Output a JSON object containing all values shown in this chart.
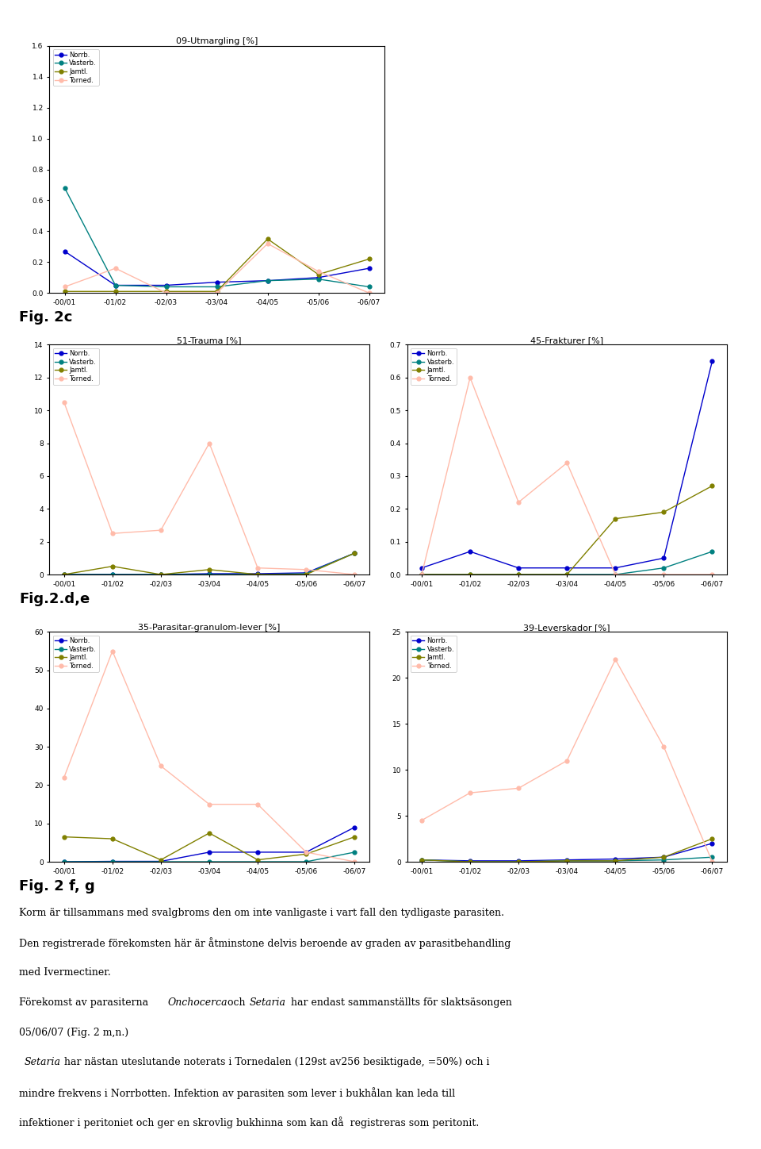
{
  "x_labels": [
    "-00/01",
    "-01/02",
    "-02/03",
    "-03/04",
    "-04/05",
    "-05/06",
    "-06/07"
  ],
  "x_vals": [
    0,
    1,
    2,
    3,
    4,
    5,
    6
  ],
  "colors": {
    "Norrb.": "#0000cc",
    "Vasterb.": "#008080",
    "Jamtl.": "#808000",
    "Torned.": "#ffbbaa"
  },
  "legend_labels": [
    "Norrb.",
    "Vasterb.",
    "Jamtl.",
    "Torned."
  ],
  "chart1": {
    "title": "09-Utmargling [%]",
    "ylim": [
      0,
      1.6
    ],
    "yticks": [
      0,
      0.2,
      0.4,
      0.6,
      0.8,
      1.0,
      1.2,
      1.4,
      1.6
    ],
    "Norrb.": [
      0.27,
      0.05,
      0.05,
      0.07,
      0.08,
      0.1,
      0.16
    ],
    "Vasterb.": [
      0.68,
      0.05,
      0.04,
      0.04,
      0.08,
      0.09,
      0.04
    ],
    "Jamtl.": [
      0.01,
      0.01,
      0.01,
      0.01,
      0.35,
      0.12,
      0.22
    ],
    "Torned.": [
      0.04,
      0.16,
      0.0,
      0.0,
      0.32,
      0.14,
      0.0
    ]
  },
  "chart2": {
    "title": "51-Trauma [%]",
    "ylim": [
      0,
      14
    ],
    "yticks": [
      0,
      2,
      4,
      6,
      8,
      10,
      12,
      14
    ],
    "Norrb.": [
      0.0,
      0.0,
      0.0,
      0.05,
      0.05,
      0.1,
      1.3
    ],
    "Vasterb.": [
      0.0,
      0.0,
      0.0,
      0.0,
      0.0,
      0.05,
      1.3
    ],
    "Jamtl.": [
      0.0,
      0.5,
      0.0,
      0.3,
      0.0,
      0.0,
      1.3
    ],
    "Torned.": [
      10.5,
      2.5,
      2.7,
      8.0,
      0.4,
      0.3,
      0.0
    ]
  },
  "chart3": {
    "title": "45-Frakturer [%]",
    "ylim": [
      0,
      0.7
    ],
    "yticks": [
      0,
      0.1,
      0.2,
      0.3,
      0.4,
      0.5,
      0.6,
      0.7
    ],
    "Norrb.": [
      0.02,
      0.07,
      0.02,
      0.02,
      0.02,
      0.05,
      0.65
    ],
    "Vasterb.": [
      0.0,
      0.0,
      0.0,
      0.0,
      0.0,
      0.02,
      0.07
    ],
    "Jamtl.": [
      0.0,
      0.0,
      0.0,
      0.0,
      0.17,
      0.19,
      0.27
    ],
    "Torned.": [
      0.0,
      0.6,
      0.22,
      0.34,
      0.0,
      0.0,
      0.0
    ]
  },
  "chart4": {
    "title": "35-Parasitar-granulom-lever [%]",
    "ylim": [
      0,
      60
    ],
    "yticks": [
      0,
      10,
      20,
      30,
      40,
      50,
      60
    ],
    "Norrb.": [
      0.0,
      0.1,
      0.1,
      2.5,
      2.5,
      2.5,
      9.0
    ],
    "Vasterb.": [
      0.0,
      0.0,
      0.0,
      0.0,
      0.0,
      0.0,
      2.5
    ],
    "Jamtl.": [
      6.5,
      6.0,
      0.5,
      7.5,
      0.5,
      2.0,
      6.5
    ],
    "Torned.": [
      22.0,
      55.0,
      25.0,
      15.0,
      15.0,
      2.5,
      0.0
    ]
  },
  "chart5": {
    "title": "39-Leverskador [%]",
    "ylim": [
      0,
      25
    ],
    "yticks": [
      0,
      5,
      10,
      15,
      20,
      25
    ],
    "Norrb.": [
      0.2,
      0.1,
      0.1,
      0.2,
      0.3,
      0.5,
      2.0
    ],
    "Vasterb.": [
      0.2,
      0.0,
      0.0,
      0.1,
      0.1,
      0.2,
      0.5
    ],
    "Jamtl.": [
      0.2,
      0.0,
      0.0,
      0.1,
      0.1,
      0.5,
      2.5
    ],
    "Torned.": [
      4.5,
      7.5,
      8.0,
      11.0,
      22.0,
      12.5,
      0.0
    ]
  },
  "fig2c_label": "Fig. 2c",
  "fig2de_label": "Fig.2.d,e",
  "fig2fg_label": "Fig. 2 f, g"
}
